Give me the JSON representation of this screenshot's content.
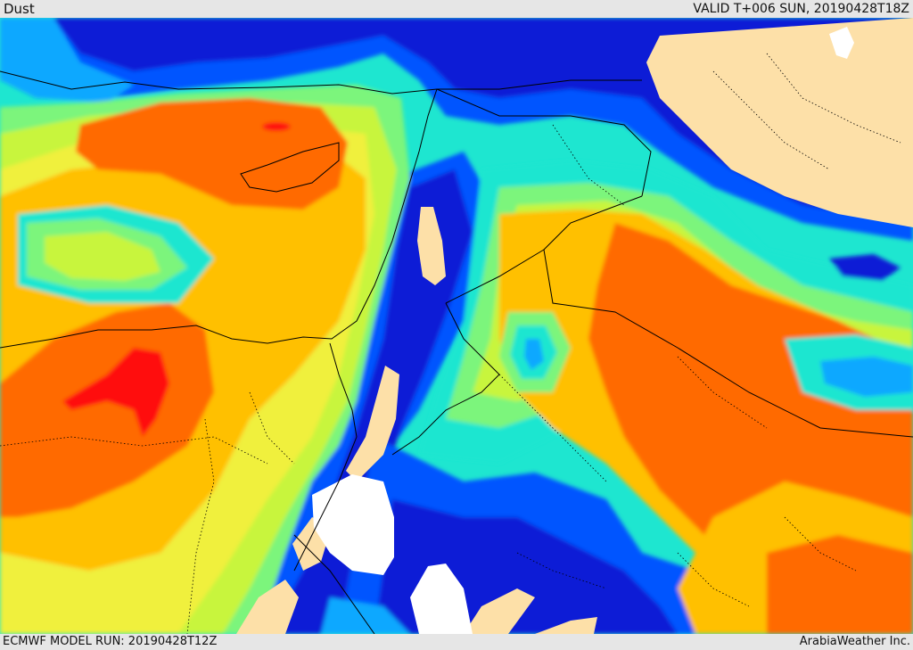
{
  "header": {
    "product": "Dust",
    "valid": "VALID T+006 SUN, 20190428T18Z"
  },
  "footer": {
    "model_run": "ECMWF MODEL RUN: 20190428T12Z",
    "credit": "ArabiaWeather Inc."
  },
  "palette": {
    "deep_blue": "#0a1fd6",
    "blue": "#0055ff",
    "sky": "#0aa8ff",
    "cyan": "#1ee6d0",
    "light_green": "#7cf57c",
    "yellow_green": "#c8f53c",
    "yellow": "#f0f03c",
    "gold": "#ffc000",
    "orange": "#ff6a00",
    "red": "#ff1010",
    "masked_land": "#fde0a8",
    "no_data": "#ffffff"
  }
}
